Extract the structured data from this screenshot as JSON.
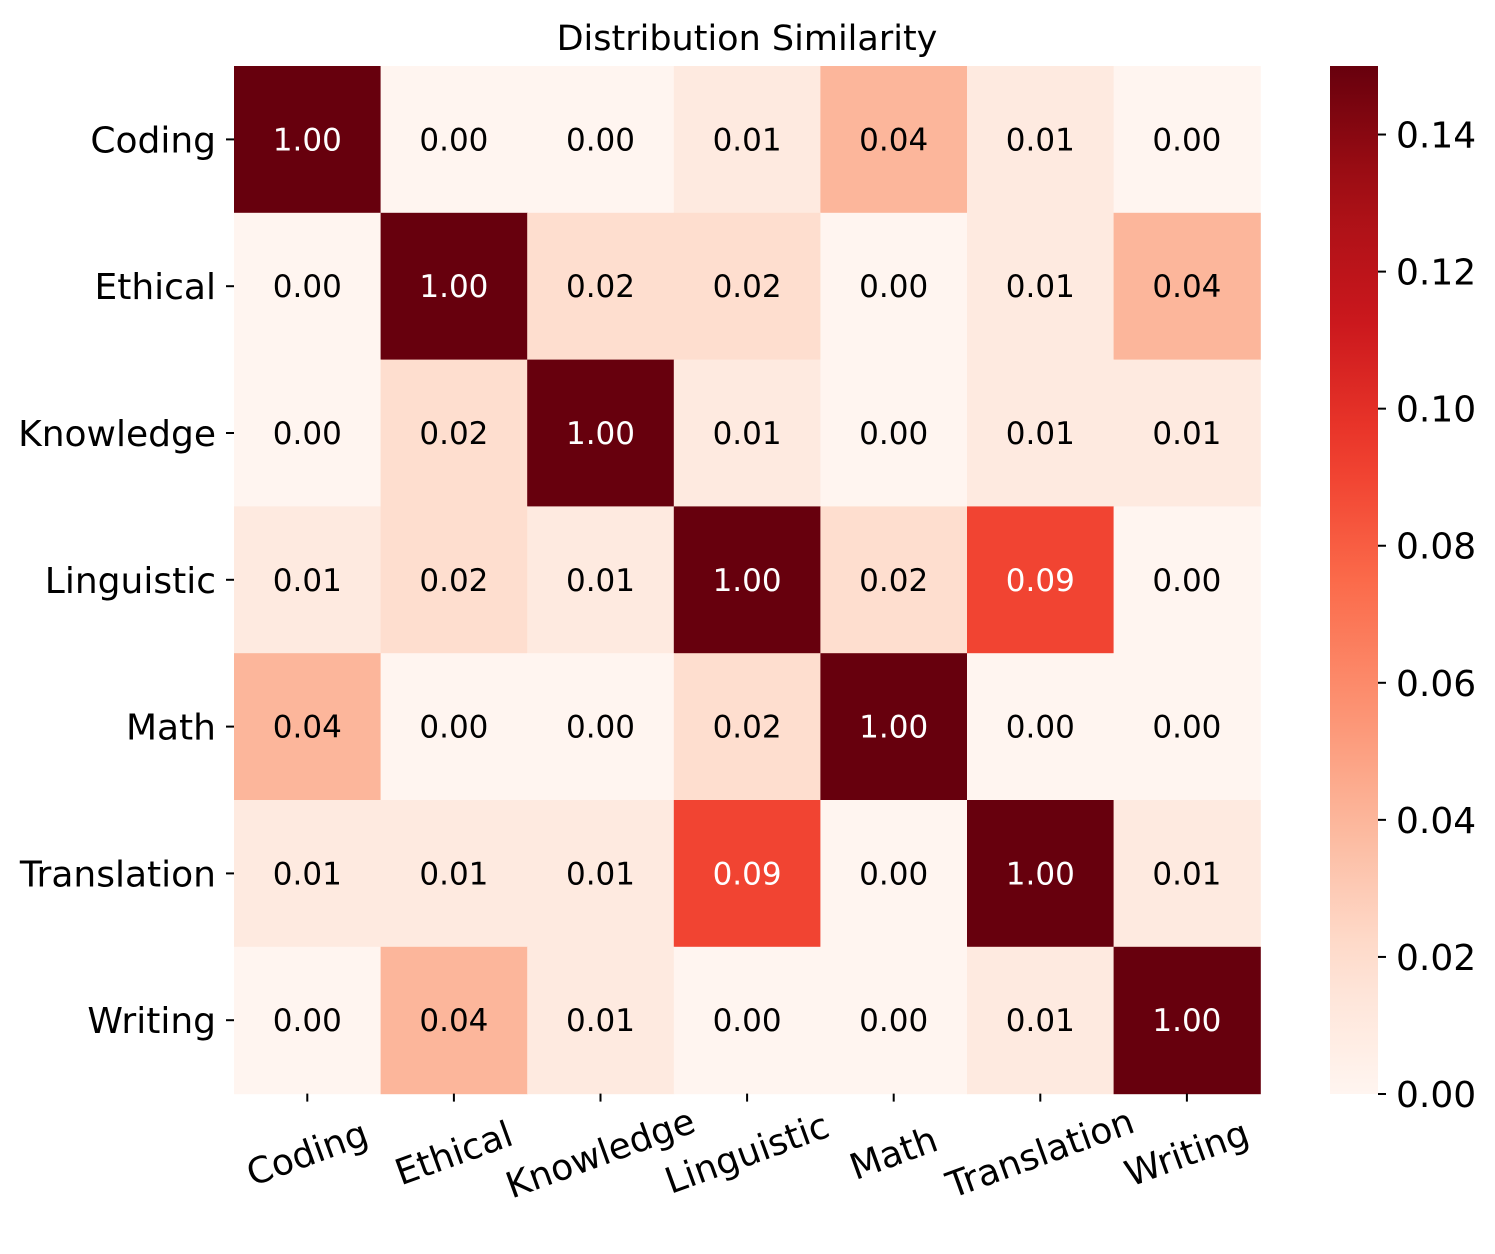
{
  "chart_data": {
    "type": "heatmap",
    "title": "Distribution Similarity",
    "xlabel": "",
    "ylabel": "",
    "rows": [
      "Coding",
      "Ethical",
      "Knowledge",
      "Linguistic",
      "Math",
      "Translation",
      "Writing"
    ],
    "columns": [
      "Coding",
      "Ethical",
      "Knowledge",
      "Linguistic",
      "Math",
      "Translation",
      "Writing"
    ],
    "values": [
      [
        1.0,
        0.0,
        0.0,
        0.01,
        0.04,
        0.01,
        0.0
      ],
      [
        0.0,
        1.0,
        0.02,
        0.02,
        0.0,
        0.01,
        0.04
      ],
      [
        0.0,
        0.02,
        1.0,
        0.01,
        0.0,
        0.01,
        0.01
      ],
      [
        0.01,
        0.02,
        0.01,
        1.0,
        0.02,
        0.09,
        0.0
      ],
      [
        0.04,
        0.0,
        0.0,
        0.02,
        1.0,
        0.0,
        0.0
      ],
      [
        0.01,
        0.01,
        0.01,
        0.09,
        0.0,
        1.0,
        0.01
      ],
      [
        0.0,
        0.04,
        0.01,
        0.0,
        0.0,
        0.01,
        1.0
      ]
    ],
    "cell_labels": [
      [
        "1.00",
        "0.00",
        "0.00",
        "0.01",
        "0.04",
        "0.01",
        "0.00"
      ],
      [
        "0.00",
        "1.00",
        "0.02",
        "0.02",
        "0.00",
        "0.01",
        "0.04"
      ],
      [
        "0.00",
        "0.02",
        "1.00",
        "0.01",
        "0.00",
        "0.01",
        "0.01"
      ],
      [
        "0.01",
        "0.02",
        "0.01",
        "1.00",
        "0.02",
        "0.09",
        "0.00"
      ],
      [
        "0.04",
        "0.00",
        "0.00",
        "0.02",
        "1.00",
        "0.00",
        "0.00"
      ],
      [
        "0.01",
        "0.01",
        "0.01",
        "0.09",
        "0.00",
        "1.00",
        "0.01"
      ],
      [
        "0.00",
        "0.04",
        "0.01",
        "0.00",
        "0.00",
        "0.01",
        "1.00"
      ]
    ],
    "colormap": "Reds",
    "colorbar": {
      "range": [
        0,
        0.15
      ],
      "ticks": [
        0.0,
        0.02,
        0.04,
        0.06,
        0.08,
        0.1,
        0.12,
        0.14
      ],
      "tick_labels": [
        "0.00",
        "0.02",
        "0.04",
        "0.06",
        "0.08",
        "0.10",
        "0.12",
        "0.14"
      ]
    },
    "colors": {
      "reds_stops": [
        "#fff5f0",
        "#fee0d2",
        "#fcbba1",
        "#fc9272",
        "#fb6a4a",
        "#ef3b2c",
        "#cb181d",
        "#a50f15",
        "#67000d"
      ],
      "text_dark": "#000000",
      "text_light": "#ffffff"
    }
  }
}
